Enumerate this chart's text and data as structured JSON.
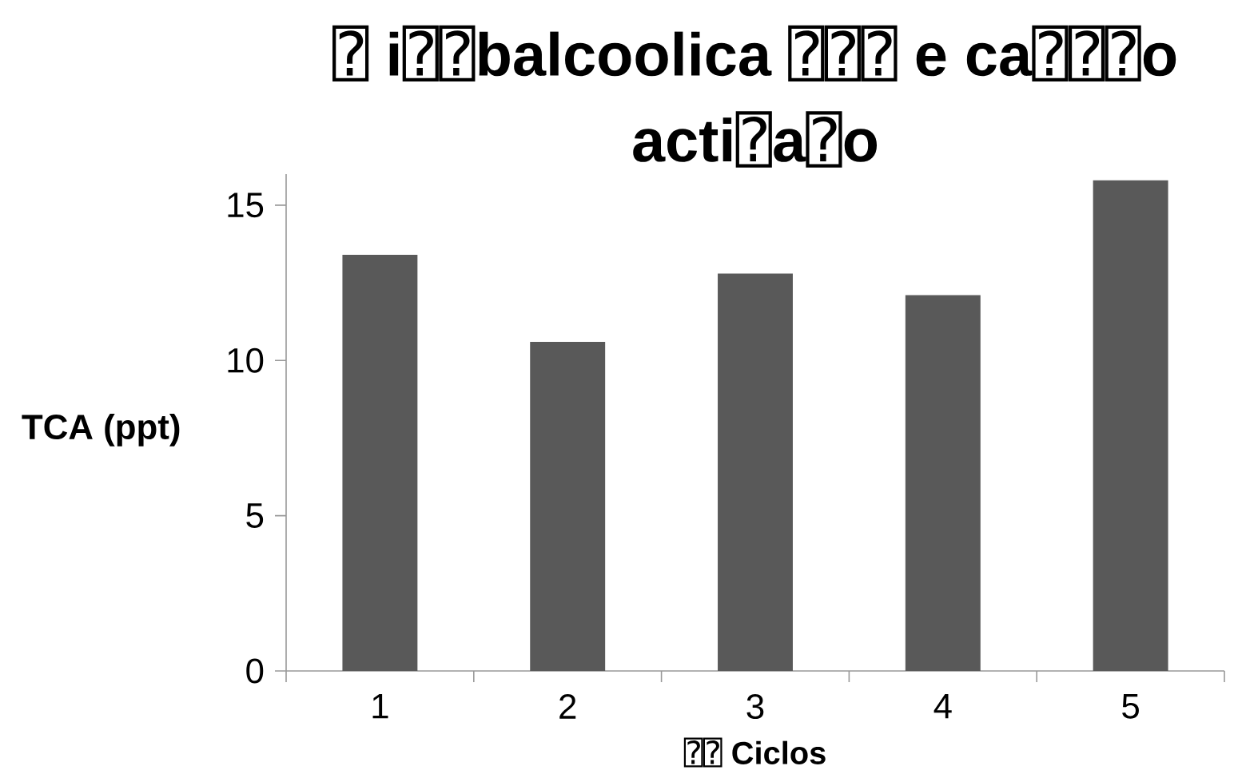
{
  "chart_data": {
    "type": "bar",
    "title": "⍰ i⍰⍰balcoolica ⍰⍰⍰ e ca⍰⍰⍰o acti⍰a⍰o",
    "xlabel": "⍰⍰ Ciclos",
    "ylabel": "TCA (ppt)",
    "categories": [
      "1",
      "2",
      "3",
      "4",
      "5"
    ],
    "values": [
      13.4,
      10.6,
      12.8,
      12.1,
      15.8
    ],
    "color": "#595959",
    "ylim": [
      0,
      16
    ],
    "yticks": [
      0,
      5,
      10,
      15
    ]
  }
}
